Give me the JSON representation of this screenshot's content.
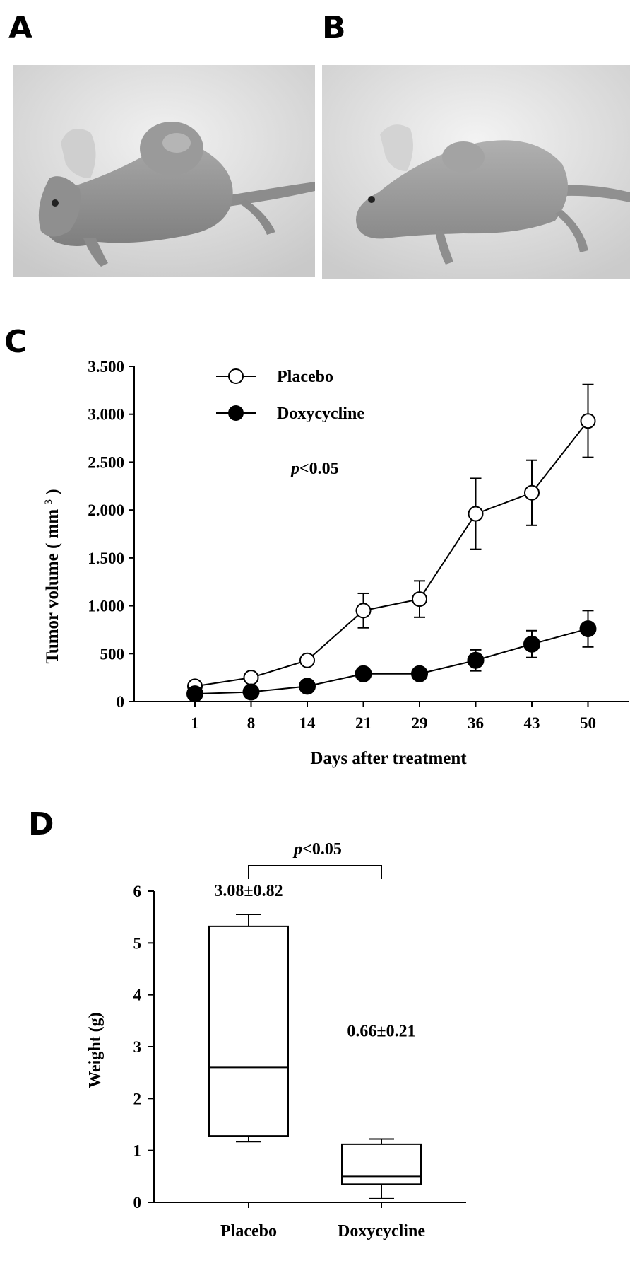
{
  "panels": {
    "a": {
      "letter": "A"
    },
    "b": {
      "letter": "B"
    },
    "c": {
      "letter": "C"
    },
    "d": {
      "letter": "D"
    }
  },
  "chart_data": [
    {
      "type": "line",
      "x": [
        1,
        8,
        14,
        21,
        29,
        36,
        43,
        50
      ],
      "x_tick_labels": [
        "1",
        "8",
        "14",
        "21",
        "29",
        "36",
        "43",
        "50"
      ],
      "xlabel": "Days after treatment",
      "ylabel_main": "Tumor volume",
      "ylabel_unit": "mm",
      "ylabel_sup": "3",
      "ylim": [
        0,
        3500
      ],
      "y_ticks": [
        0,
        500,
        1000,
        1500,
        2000,
        2500,
        3000,
        3500
      ],
      "y_tick_labels": [
        "0",
        "500",
        "1.000",
        "1.500",
        "2.000",
        "2.500",
        "3.000",
        "3.500"
      ],
      "annotation_p": "p",
      "annotation_rest": "<0.05",
      "legend_position": "top-left",
      "series": [
        {
          "name": "Placebo",
          "marker": "open-circle",
          "values": [
            160,
            250,
            430,
            950,
            1070,
            1960,
            2180,
            2930
          ],
          "error": [
            0,
            0,
            0,
            180,
            190,
            370,
            340,
            380
          ]
        },
        {
          "name": "Doxycycline",
          "marker": "filled-circle",
          "values": [
            80,
            100,
            160,
            290,
            290,
            430,
            600,
            760
          ],
          "error": [
            0,
            0,
            0,
            0,
            0,
            110,
            140,
            190
          ]
        }
      ]
    },
    {
      "type": "box",
      "categories": [
        "Placebo",
        "Doxycycline"
      ],
      "ylabel": "Weight (g)",
      "ylim": [
        0,
        6
      ],
      "y_ticks": [
        "0",
        "1",
        "2",
        "3",
        "4",
        "5",
        "6"
      ],
      "boxes": [
        {
          "name": "Placebo",
          "min": 1.17,
          "q1": 1.28,
          "median": 2.6,
          "q3": 5.32,
          "max": 5.55,
          "label": "3.08±0.82"
        },
        {
          "name": "Doxycycline",
          "min": 0.07,
          "q1": 0.35,
          "median": 0.5,
          "q3": 1.12,
          "max": 1.22,
          "label": "0.66±0.21"
        }
      ],
      "annotation_p": "p",
      "annotation_rest": "<0.05"
    }
  ]
}
